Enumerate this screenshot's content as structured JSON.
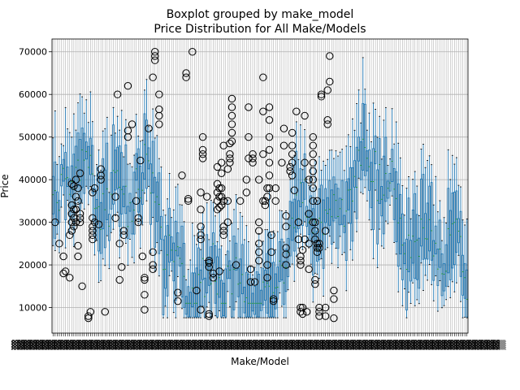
{
  "chart_data": {
    "type": "boxplot",
    "suptitle": "Boxplot grouped by make_model",
    "title": "Price Distribution for All Make/Models",
    "xlabel": "Make/Model",
    "ylabel": "Price",
    "ylim": [
      4000,
      73000
    ],
    "yticks": [
      10000,
      20000,
      30000,
      40000,
      50000,
      60000,
      70000
    ],
    "yticklabels": [
      "10000",
      "20000",
      "30000",
      "40000",
      "50000",
      "60000",
      "70000"
    ],
    "grid": true,
    "n_groups": 200,
    "series_note": "Category tick labels (approx. 200 make/model names) are rendered overlapping and unreadable in the source image.",
    "box_color": "#1f77b4",
    "median_color": "#2ca02c",
    "grid_color": "#b0b0b0",
    "outlier_clusters": [
      {
        "group": 1,
        "values": [
          30000
        ]
      },
      {
        "group": 3,
        "values": [
          25000
        ]
      },
      {
        "group": 5,
        "values": [
          18000,
          22000
        ]
      },
      {
        "group": 6,
        "values": [
          18500
        ]
      },
      {
        "group": 8,
        "values": [
          17000,
          27000
        ]
      },
      {
        "group": 9,
        "values": [
          28000,
          30000,
          32000,
          34000,
          39000
        ]
      },
      {
        "group": 10,
        "values": [
          29000,
          31000,
          33000,
          38500
        ]
      },
      {
        "group": 11,
        "values": [
          30000,
          33000,
          36000,
          40000
        ]
      },
      {
        "group": 12,
        "values": [
          22000,
          24500,
          35000,
          38000
        ]
      },
      {
        "group": 13,
        "values": [
          30000,
          31000,
          32000,
          41500
        ]
      },
      {
        "group": 14,
        "values": [
          15000
        ]
      },
      {
        "group": 17,
        "values": [
          7500,
          8000
        ]
      },
      {
        "group": 18,
        "values": [
          9000
        ]
      },
      {
        "group": 19,
        "values": [
          26000,
          27000,
          28000,
          29000,
          31000,
          37000
        ]
      },
      {
        "group": 20,
        "values": [
          30000,
          38000
        ]
      },
      {
        "group": 22,
        "values": [
          29500
        ]
      },
      {
        "group": 23,
        "values": [
          40000,
          41000,
          42500
        ]
      },
      {
        "group": 25,
        "values": [
          9000
        ]
      },
      {
        "group": 30,
        "values": [
          31000,
          36000
        ]
      },
      {
        "group": 31,
        "values": [
          60000
        ]
      },
      {
        "group": 32,
        "values": [
          16500,
          25000
        ]
      },
      {
        "group": 33,
        "values": [
          19500
        ]
      },
      {
        "group": 34,
        "values": [
          27000,
          28000
        ]
      },
      {
        "group": 36,
        "values": [
          50000,
          51500,
          62000
        ]
      },
      {
        "group": 38,
        "values": [
          53000
        ]
      },
      {
        "group": 40,
        "values": [
          35000
        ]
      },
      {
        "group": 41,
        "values": [
          30000,
          31000
        ]
      },
      {
        "group": 42,
        "values": [
          44500
        ]
      },
      {
        "group": 43,
        "values": [
          22000
        ]
      },
      {
        "group": 44,
        "values": [
          9500,
          13000,
          16500,
          17000
        ]
      },
      {
        "group": 46,
        "values": [
          52000
        ]
      },
      {
        "group": 48,
        "values": [
          19000,
          20000,
          23000,
          64000
        ]
      },
      {
        "group": 49,
        "values": [
          68000,
          69000,
          70000
        ]
      },
      {
        "group": 51,
        "values": [
          53000,
          55000,
          56500,
          60000
        ]
      },
      {
        "group": 60,
        "values": [
          11500,
          13500
        ]
      },
      {
        "group": 62,
        "values": [
          41000
        ]
      },
      {
        "group": 64,
        "values": [
          64000,
          65000
        ]
      },
      {
        "group": 65,
        "values": [
          35000,
          35500
        ]
      },
      {
        "group": 67,
        "values": [
          70000
        ]
      },
      {
        "group": 69,
        "values": [
          14000
        ]
      },
      {
        "group": 71,
        "values": [
          9500,
          26000,
          27000,
          29000,
          33000,
          37000
        ]
      },
      {
        "group": 72,
        "values": [
          45000,
          46000,
          47000,
          50000
        ]
      },
      {
        "group": 74,
        "values": [
          36000
        ]
      },
      {
        "group": 75,
        "values": [
          8000,
          8500,
          19500,
          20500,
          21000
        ]
      },
      {
        "group": 77,
        "values": [
          17000,
          18000
        ]
      },
      {
        "group": 79,
        "values": [
          33000,
          35000,
          37000,
          39000,
          43000
        ]
      },
      {
        "group": 80,
        "values": [
          18500,
          33500,
          36000,
          38000
        ]
      },
      {
        "group": 81,
        "values": [
          34000,
          36000,
          38000,
          41500,
          44000
        ]
      },
      {
        "group": 82,
        "values": [
          27000,
          28000,
          29000,
          35000,
          48000
        ]
      },
      {
        "group": 84,
        "values": [
          30000,
          35000,
          42500
        ]
      },
      {
        "group": 85,
        "values": [
          44000,
          45000,
          46000,
          48500
        ]
      },
      {
        "group": 86,
        "values": [
          49000,
          51000,
          53000,
          55000,
          57000,
          59000
        ]
      },
      {
        "group": 88,
        "values": [
          20000
        ]
      },
      {
        "group": 90,
        "values": [
          35000
        ]
      },
      {
        "group": 93,
        "values": [
          37000,
          40000
        ]
      },
      {
        "group": 94,
        "values": [
          45000,
          50000,
          57000
        ]
      },
      {
        "group": 95,
        "values": [
          16000,
          19000
        ]
      },
      {
        "group": 96,
        "values": [
          44000,
          45000,
          46000
        ]
      },
      {
        "group": 97,
        "values": [
          16000
        ]
      },
      {
        "group": 99,
        "values": [
          21000,
          23000,
          25000,
          28000,
          30000,
          40000
        ]
      },
      {
        "group": 101,
        "values": [
          35000,
          46000,
          56000,
          64000
        ]
      },
      {
        "group": 102,
        "values": [
          34000,
          35000
        ]
      },
      {
        "group": 103,
        "values": [
          17000,
          20000,
          36000,
          38000
        ]
      },
      {
        "group": 104,
        "values": [
          38000,
          41000,
          44000,
          47000,
          50000,
          54000,
          57000
        ]
      },
      {
        "group": 105,
        "values": [
          23000,
          27000
        ]
      },
      {
        "group": 106,
        "values": [
          11500,
          12000
        ]
      },
      {
        "group": 107,
        "values": [
          35000,
          38000
        ]
      },
      {
        "group": 110,
        "values": [
          44000
        ]
      },
      {
        "group": 111,
        "values": [
          48000,
          52000
        ]
      },
      {
        "group": 112,
        "values": [
          20000,
          22500,
          24000,
          29000,
          31500
        ]
      },
      {
        "group": 114,
        "values": [
          42000,
          43000
        ]
      },
      {
        "group": 115,
        "values": [
          41000,
          44000,
          46000,
          48000,
          51000
        ]
      },
      {
        "group": 116,
        "values": [
          37500
        ]
      },
      {
        "group": 117,
        "values": [
          56000
        ]
      },
      {
        "group": 118,
        "values": [
          26000,
          30000
        ]
      },
      {
        "group": 119,
        "values": [
          9000,
          10000,
          20000,
          21000,
          22000
        ]
      },
      {
        "group": 120,
        "values": [
          8500,
          10000,
          23500
        ]
      },
      {
        "group": 121,
        "values": [
          26000,
          44000,
          55000
        ]
      },
      {
        "group": 122,
        "values": [
          9000
        ]
      },
      {
        "group": 123,
        "values": [
          19000,
          25000,
          32000,
          40000
        ]
      },
      {
        "group": 125,
        "values": [
          30000,
          35000,
          38000,
          40000,
          42000,
          44000,
          46000,
          48000,
          50000
        ]
      },
      {
        "group": 126,
        "values": [
          15500,
          16500,
          26000,
          28000,
          30000
        ]
      },
      {
        "group": 127,
        "values": [
          23000,
          24000,
          25000,
          35000
        ]
      },
      {
        "group": 128,
        "values": [
          8000,
          9000,
          10000,
          24000,
          25000
        ]
      },
      {
        "group": 129,
        "values": [
          59500,
          60000
        ]
      },
      {
        "group": 131,
        "values": [
          8000,
          10000,
          28000
        ]
      },
      {
        "group": 132,
        "values": [
          53000,
          54000,
          61000
        ]
      },
      {
        "group": 133,
        "values": [
          63000,
          69000
        ]
      },
      {
        "group": 135,
        "values": [
          7500,
          12000,
          14000
        ]
      }
    ]
  }
}
